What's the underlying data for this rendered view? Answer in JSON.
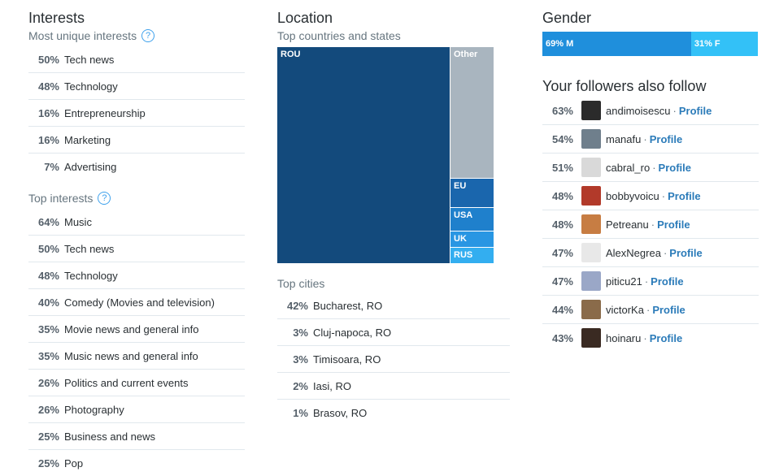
{
  "interests": {
    "title": "Interests",
    "unique_subtitle": "Most unique interests",
    "unique": [
      {
        "pct": "50%",
        "label": "Tech news"
      },
      {
        "pct": "48%",
        "label": "Technology"
      },
      {
        "pct": "16%",
        "label": "Entrepreneurship"
      },
      {
        "pct": "16%",
        "label": "Marketing"
      },
      {
        "pct": "7%",
        "label": "Advertising"
      }
    ],
    "top_subtitle": "Top interests",
    "top": [
      {
        "pct": "64%",
        "label": "Music"
      },
      {
        "pct": "50%",
        "label": "Tech news"
      },
      {
        "pct": "48%",
        "label": "Technology"
      },
      {
        "pct": "40%",
        "label": "Comedy (Movies and television)"
      },
      {
        "pct": "35%",
        "label": "Movie news and general info"
      },
      {
        "pct": "35%",
        "label": "Music news and general info"
      },
      {
        "pct": "26%",
        "label": "Politics and current events"
      },
      {
        "pct": "26%",
        "label": "Photography"
      },
      {
        "pct": "25%",
        "label": "Business and news"
      },
      {
        "pct": "25%",
        "label": "Pop"
      }
    ]
  },
  "location": {
    "title": "Location",
    "countries_subtitle": "Top countries and states",
    "treemap": [
      {
        "label": "ROU",
        "color": "#134a7c"
      },
      {
        "label": "Other",
        "color": "#a9b5bf"
      },
      {
        "label": "EU",
        "color": "#1a66ad"
      },
      {
        "label": "USA",
        "color": "#1f80cc"
      },
      {
        "label": "UK",
        "color": "#2896e3"
      },
      {
        "label": "RUS",
        "color": "#33aef0"
      }
    ],
    "cities_subtitle": "Top cities",
    "cities": [
      {
        "pct": "42%",
        "label": "Bucharest, RO"
      },
      {
        "pct": "3%",
        "label": "Cluj-napoca, RO"
      },
      {
        "pct": "3%",
        "label": "Timisoara, RO"
      },
      {
        "pct": "2%",
        "label": "Iasi, RO"
      },
      {
        "pct": "1%",
        "label": "Brasov, RO"
      }
    ]
  },
  "gender": {
    "title": "Gender",
    "male_label": "69% M",
    "female_label": "31% F",
    "male_fraction": 0.69,
    "male_color": "#1f8fdc",
    "female_color": "#33c1f7"
  },
  "followers": {
    "title": "Your followers also follow",
    "separator": "·",
    "items": [
      {
        "pct": "63%",
        "name": "andimoisescu",
        "link": "Profile",
        "avatar": "#2b2b2b"
      },
      {
        "pct": "54%",
        "name": "manafu",
        "link": "Profile",
        "avatar": "#6f7f8c"
      },
      {
        "pct": "51%",
        "name": "cabral_ro",
        "link": "Profile",
        "avatar": "#d9d9d9"
      },
      {
        "pct": "48%",
        "name": "bobbyvoicu",
        "link": "Profile",
        "avatar": "#b23a2a"
      },
      {
        "pct": "48%",
        "name": "Petreanu",
        "link": "Profile",
        "avatar": "#c77d43"
      },
      {
        "pct": "47%",
        "name": "AlexNegrea",
        "link": "Profile",
        "avatar": "#e8e8e8"
      },
      {
        "pct": "47%",
        "name": "piticu21",
        "link": "Profile",
        "avatar": "#9aa7c7"
      },
      {
        "pct": "44%",
        "name": "victorKa",
        "link": "Profile",
        "avatar": "#8a6b4a"
      },
      {
        "pct": "43%",
        "name": "hoinaru",
        "link": "Profile",
        "avatar": "#3a2a22"
      }
    ]
  }
}
